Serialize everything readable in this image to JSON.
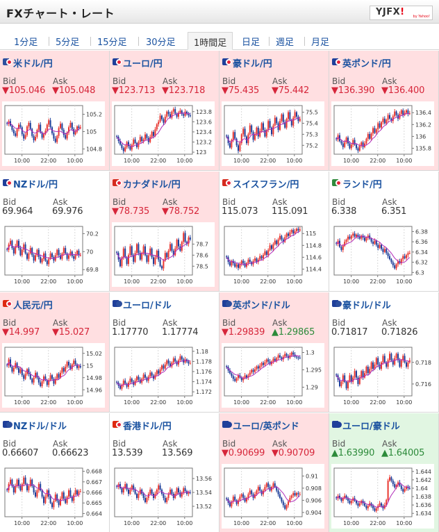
{
  "header": {
    "title": "FXチャート・レート",
    "logo": "YJFX!",
    "logo_sub": "by Yahoo!"
  },
  "tabs": [
    "1分足",
    "5分足",
    "15分足",
    "30分足",
    "1時間足",
    "日足",
    "週足",
    "月足"
  ],
  "active_tab": 4,
  "labels": {
    "bid": "Bid",
    "ask": "Ask",
    "x_ticks": [
      "10:00",
      "22:00",
      "10:00"
    ]
  },
  "colors": {
    "down_bg": "#ffdfe1",
    "up_bg": "#e1f6e2",
    "down_text": "#d6263a",
    "up_text": "#2c8a3a",
    "candle_up": "#e8352f",
    "candle_down": "#1f3f9a",
    "ma": "#b02bb9"
  },
  "pairs": [
    {
      "name": "米ドル/円",
      "flag": "us-jp",
      "state": "down",
      "bid": "▼105.046",
      "ask": "▼105.048",
      "bid_dir": "down",
      "ask_dir": "down",
      "yticks": [
        "105.2",
        "105",
        "104.8"
      ],
      "ymin": 104.74,
      "ymax": 105.3,
      "closes": [
        105.09,
        105.12,
        105.07,
        105.02,
        104.98,
        104.95,
        105.03,
        105.08,
        105.05,
        104.97,
        104.92,
        104.96,
        105.06,
        105.1,
        105.03,
        104.95,
        104.9,
        104.94,
        105.02,
        105.08,
        104.99,
        104.93,
        104.97,
        105.01,
        105.08,
        105.13,
        105.05,
        104.98,
        104.92,
        104.88,
        104.95,
        105.04,
        105.09,
        105.02,
        104.96,
        104.92,
        104.99,
        105.05,
        105.1,
        105.03,
        104.97,
        105.0,
        105.06,
        105.04,
        105.05
      ]
    },
    {
      "name": "ユーロ/円",
      "flag": "eu-jp",
      "state": "down",
      "bid": "▼123.713",
      "ask": "▼123.718",
      "bid_dir": "down",
      "ask_dir": "down",
      "yticks": [
        "123.8",
        "123.6",
        "123.4",
        "123.2",
        "123"
      ],
      "ymin": 122.96,
      "ymax": 123.92,
      "closes": [
        123.3,
        123.22,
        123.15,
        123.08,
        123.02,
        123.1,
        123.2,
        123.12,
        123.05,
        123.15,
        123.25,
        123.18,
        123.1,
        123.2,
        123.3,
        123.22,
        123.25,
        123.35,
        123.28,
        123.2,
        123.3,
        123.4,
        123.32,
        123.45,
        123.55,
        123.6,
        123.72,
        123.65,
        123.58,
        123.7,
        123.8,
        123.75,
        123.68,
        123.8,
        123.85,
        123.76,
        123.7,
        123.78,
        123.82,
        123.75,
        123.72,
        123.8,
        123.76,
        123.73,
        123.71
      ]
    },
    {
      "name": "豪ドル/円",
      "flag": "au-jp",
      "state": "down",
      "bid": "▼75.435",
      "ask": "▼75.442",
      "bid_dir": "down",
      "ask_dir": "down",
      "yticks": [
        "75.5",
        "75.4",
        "75.3",
        "75.2"
      ],
      "ymin": 75.12,
      "ymax": 75.56,
      "closes": [
        75.28,
        75.22,
        75.18,
        75.25,
        75.32,
        75.26,
        75.2,
        75.15,
        75.22,
        75.3,
        75.35,
        75.28,
        75.22,
        75.3,
        75.38,
        75.32,
        75.25,
        75.3,
        75.36,
        75.28,
        75.33,
        75.4,
        75.34,
        75.28,
        75.34,
        75.42,
        75.36,
        75.3,
        75.38,
        75.45,
        75.4,
        75.34,
        75.42,
        75.48,
        75.41,
        75.36,
        75.44,
        75.5,
        75.43,
        75.38,
        75.45,
        75.5,
        75.46,
        75.42,
        75.44
      ]
    },
    {
      "name": "英ポンド/円",
      "flag": "gb-jp",
      "state": "down",
      "bid": "▼136.390",
      "ask": "▼136.400",
      "bid_dir": "down",
      "ask_dir": "down",
      "yticks": [
        "136.4",
        "136.2",
        "136",
        "135.8"
      ],
      "ymin": 135.7,
      "ymax": 136.52,
      "closes": [
        135.95,
        136.02,
        135.92,
        135.88,
        135.82,
        135.9,
        135.98,
        135.88,
        135.8,
        135.86,
        135.94,
        135.86,
        135.8,
        135.76,
        135.84,
        135.9,
        135.82,
        135.88,
        135.96,
        136.04,
        135.96,
        136.05,
        136.14,
        136.06,
        136.12,
        136.22,
        136.15,
        136.24,
        136.3,
        136.22,
        136.28,
        136.36,
        136.3,
        136.26,
        136.34,
        136.42,
        136.36,
        136.3,
        136.38,
        136.44,
        136.36,
        136.4,
        136.44,
        136.38,
        136.39
      ]
    },
    {
      "name": "NZドル/円",
      "flag": "nz-jp",
      "state": "flat",
      "bid": "69.964",
      "ask": "69.976",
      "bid_dir": "flat",
      "ask_dir": "flat",
      "yticks": [
        "70.2",
        "70",
        "69.8"
      ],
      "ymin": 69.74,
      "ymax": 70.28,
      "closes": [
        70.02,
        70.08,
        70.12,
        70.04,
        69.98,
        70.06,
        70.12,
        70.04,
        69.96,
        70.02,
        70.08,
        69.98,
        69.92,
        69.98,
        70.04,
        69.96,
        69.9,
        69.96,
        70.02,
        69.94,
        69.88,
        69.92,
        69.98,
        69.9,
        69.86,
        69.92,
        69.98,
        69.94,
        69.9,
        69.96,
        70.02,
        69.96,
        69.92,
        69.98,
        70.04,
        69.98,
        69.92,
        69.96,
        70.0,
        69.95,
        69.92,
        69.97,
        70.01,
        69.96,
        69.96
      ]
    },
    {
      "name": "カナダドル/円",
      "flag": "ca-jp",
      "state": "down",
      "bid": "▼78.735",
      "ask": "▼78.752",
      "bid_dir": "down",
      "ask_dir": "down",
      "yticks": [
        "78.7",
        "78.6",
        "78.5"
      ],
      "ymin": 78.42,
      "ymax": 78.86,
      "closes": [
        78.62,
        78.56,
        78.5,
        78.58,
        78.66,
        78.58,
        78.52,
        78.6,
        78.68,
        78.6,
        78.54,
        78.62,
        78.7,
        78.62,
        78.56,
        78.62,
        78.68,
        78.6,
        78.54,
        78.6,
        78.66,
        78.58,
        78.52,
        78.58,
        78.64,
        78.56,
        78.5,
        78.48,
        78.55,
        78.62,
        78.58,
        78.64,
        78.7,
        78.64,
        78.6,
        78.66,
        78.74,
        78.68,
        78.64,
        78.72,
        78.8,
        78.72,
        78.7,
        78.76,
        78.74
      ]
    },
    {
      "name": "スイスフラン/円",
      "flag": "ch-jp",
      "state": "flat",
      "bid": "115.073",
      "ask": "115.091",
      "bid_dir": "flat",
      "ask_dir": "flat",
      "yticks": [
        "115",
        "114.8",
        "114.6",
        "114.4"
      ],
      "ymin": 114.3,
      "ymax": 115.12,
      "closes": [
        114.6,
        114.52,
        114.46,
        114.54,
        114.5,
        114.44,
        114.48,
        114.42,
        114.48,
        114.54,
        114.5,
        114.44,
        114.5,
        114.56,
        114.52,
        114.48,
        114.54,
        114.58,
        114.52,
        114.56,
        114.62,
        114.58,
        114.64,
        114.7,
        114.64,
        114.72,
        114.8,
        114.74,
        114.82,
        114.88,
        114.82,
        114.9,
        114.96,
        114.9,
        114.86,
        114.94,
        115.0,
        114.96,
        115.02,
        115.06,
        115.0,
        115.04,
        115.08,
        115.05,
        115.07
      ]
    },
    {
      "name": "ランド/円",
      "flag": "za-jp",
      "state": "flat",
      "bid": "6.338",
      "ask": "6.351",
      "bid_dir": "flat",
      "ask_dir": "flat",
      "yticks": [
        "6.38",
        "6.36",
        "6.34",
        "6.32",
        "6.3"
      ],
      "ymin": 6.295,
      "ymax": 6.39,
      "closes": [
        6.356,
        6.362,
        6.35,
        6.344,
        6.352,
        6.36,
        6.364,
        6.37,
        6.366,
        6.372,
        6.376,
        6.37,
        6.374,
        6.37,
        6.366,
        6.372,
        6.368,
        6.362,
        6.368,
        6.372,
        6.366,
        6.36,
        6.356,
        6.362,
        6.354,
        6.348,
        6.354,
        6.346,
        6.34,
        6.346,
        6.338,
        6.332,
        6.326,
        6.32,
        6.314,
        6.308,
        6.316,
        6.322,
        6.318,
        6.326,
        6.332,
        6.328,
        6.334,
        6.338,
        6.338
      ]
    },
    {
      "name": "人民元/円",
      "flag": "cn-jp",
      "state": "down",
      "bid": "▼14.997",
      "ask": "▼15.027",
      "bid_dir": "down",
      "ask_dir": "down",
      "yticks": [
        "15.02",
        "15",
        "14.98",
        "14.96"
      ],
      "ymin": 14.95,
      "ymax": 15.03,
      "closes": [
        15.0,
        15.01,
        14.998,
        14.99,
        14.996,
        15.004,
        14.996,
        14.988,
        14.994,
        14.984,
        14.978,
        14.986,
        14.994,
        14.986,
        14.978,
        14.972,
        14.98,
        14.988,
        14.98,
        14.972,
        14.966,
        14.974,
        14.982,
        14.976,
        14.968,
        14.976,
        14.984,
        14.978,
        14.97,
        14.978,
        14.986,
        14.98,
        14.988,
        14.996,
        14.99,
        14.998,
        15.006,
        15.0,
        14.994,
        15.002,
        15.008,
        15.002,
        14.996,
        14.999,
        14.997
      ]
    },
    {
      "name": "ユーロ/ドル",
      "flag": "eu-us",
      "state": "flat",
      "bid": "1.17770",
      "ask": "1.17774",
      "bid_dir": "flat",
      "ask_dir": "flat",
      "yticks": [
        "1.18",
        "1.178",
        "1.176",
        "1.174",
        "1.172"
      ],
      "ymin": 1.1712,
      "ymax": 1.1808,
      "closes": [
        1.1738,
        1.1732,
        1.1726,
        1.1734,
        1.1742,
        1.1736,
        1.173,
        1.1738,
        1.1746,
        1.174,
        1.1734,
        1.1742,
        1.175,
        1.1744,
        1.1738,
        1.1746,
        1.1754,
        1.1748,
        1.1742,
        1.175,
        1.1758,
        1.1752,
        1.1746,
        1.1754,
        1.1762,
        1.1756,
        1.1764,
        1.1772,
        1.1766,
        1.1774,
        1.1782,
        1.1776,
        1.177,
        1.1778,
        1.1786,
        1.178,
        1.1774,
        1.1782,
        1.179,
        1.1784,
        1.1778,
        1.1784,
        1.178,
        1.1776,
        1.1777
      ]
    },
    {
      "name": "英ポンド/ドル",
      "flag": "gb-us",
      "state": "down",
      "bid": "▼1.29839",
      "ask": "▲1.29865",
      "bid_dir": "down",
      "ask_dir": "up",
      "yticks": [
        "1.3",
        "1.295",
        "1.29"
      ],
      "ymin": 1.2875,
      "ymax": 1.3015,
      "closes": [
        1.2958,
        1.2948,
        1.294,
        1.2932,
        1.2924,
        1.2918,
        1.2926,
        1.2934,
        1.2928,
        1.292,
        1.2926,
        1.2934,
        1.2928,
        1.2934,
        1.2942,
        1.295,
        1.2944,
        1.2952,
        1.296,
        1.2954,
        1.2962,
        1.297,
        1.2964,
        1.2972,
        1.298,
        1.2974,
        1.2966,
        1.2974,
        1.2982,
        1.2976,
        1.2984,
        1.2992,
        1.2986,
        1.298,
        1.2988,
        1.2996,
        1.299,
        1.2984,
        1.2992,
        1.3,
        1.2994,
        1.2988,
        1.2986,
        1.2985,
        1.2984
      ]
    },
    {
      "name": "豪ドル/ドル",
      "flag": "au-us",
      "state": "flat",
      "bid": "0.71817",
      "ask": "0.71826",
      "bid_dir": "flat",
      "ask_dir": "flat",
      "yticks": [
        "0.718",
        "0.716"
      ],
      "ymin": 0.7149,
      "ymax": 0.7194,
      "closes": [
        0.7168,
        0.7164,
        0.7158,
        0.7162,
        0.7168,
        0.7162,
        0.7156,
        0.7162,
        0.7168,
        0.7162,
        0.7166,
        0.7172,
        0.7166,
        0.716,
        0.7166,
        0.7172,
        0.7166,
        0.717,
        0.7176,
        0.717,
        0.7174,
        0.718,
        0.7174,
        0.7178,
        0.7184,
        0.7178,
        0.7174,
        0.718,
        0.7186,
        0.718,
        0.7176,
        0.7182,
        0.7188,
        0.7182,
        0.7178,
        0.7184,
        0.7188,
        0.7182,
        0.7176,
        0.7182,
        0.7186,
        0.718,
        0.7176,
        0.718,
        0.7182
      ]
    },
    {
      "name": "NZドル/ドル",
      "flag": "nz-us",
      "state": "flat",
      "bid": "0.66607",
      "ask": "0.66623",
      "bid_dir": "flat",
      "ask_dir": "flat",
      "yticks": [
        "0.668",
        "0.667",
        "0.666",
        "0.665",
        "0.664"
      ],
      "ymin": 0.6637,
      "ymax": 0.6683,
      "closes": [
        0.6662,
        0.6668,
        0.6672,
        0.6666,
        0.666,
        0.6666,
        0.6672,
        0.6666,
        0.6662,
        0.6668,
        0.6674,
        0.6668,
        0.6662,
        0.6666,
        0.6672,
        0.6666,
        0.666,
        0.6656,
        0.6662,
        0.6668,
        0.6662,
        0.6656,
        0.665,
        0.6656,
        0.6662,
        0.6656,
        0.665,
        0.6646,
        0.6652,
        0.6658,
        0.6652,
        0.6648,
        0.6654,
        0.666,
        0.6654,
        0.665,
        0.6656,
        0.6662,
        0.6656,
        0.6652,
        0.6658,
        0.6662,
        0.6658,
        0.6661,
        0.6661
      ]
    },
    {
      "name": "香港ドル/円",
      "flag": "hk-jp",
      "state": "flat",
      "bid": "13.539",
      "ask": "13.569",
      "bid_dir": "flat",
      "ask_dir": "flat",
      "yticks": [
        "13.56",
        "13.54",
        "13.52"
      ],
      "ymin": 13.505,
      "ymax": 13.575,
      "closes": [
        13.548,
        13.552,
        13.546,
        13.54,
        13.546,
        13.552,
        13.544,
        13.538,
        13.544,
        13.55,
        13.544,
        13.538,
        13.532,
        13.538,
        13.544,
        13.538,
        13.532,
        13.526,
        13.532,
        13.538,
        13.544,
        13.538,
        13.532,
        13.538,
        13.544,
        13.55,
        13.544,
        13.538,
        13.532,
        13.526,
        13.532,
        13.538,
        13.544,
        13.538,
        13.532,
        13.538,
        13.546,
        13.54,
        13.534,
        13.54,
        13.546,
        13.542,
        13.538,
        13.54,
        13.539
      ]
    },
    {
      "name": "ユーロ/英ポンド",
      "flag": "eu-gb",
      "state": "down",
      "bid": "▼0.90699",
      "ask": "▼0.90709",
      "bid_dir": "down",
      "ask_dir": "down",
      "yticks": [
        "0.91",
        "0.908",
        "0.906",
        "0.904"
      ],
      "ymin": 0.9033,
      "ymax": 0.9113,
      "closes": [
        0.9062,
        0.9056,
        0.905,
        0.9058,
        0.9066,
        0.906,
        0.9054,
        0.906,
        0.9066,
        0.907,
        0.9064,
        0.9058,
        0.9064,
        0.907,
        0.9076,
        0.907,
        0.9064,
        0.907,
        0.9076,
        0.9082,
        0.9076,
        0.907,
        0.9076,
        0.9082,
        0.9088,
        0.9082,
        0.9076,
        0.9082,
        0.9088,
        0.9082,
        0.9076,
        0.907,
        0.9064,
        0.9058,
        0.9052,
        0.9046,
        0.9052,
        0.9058,
        0.9064,
        0.9068,
        0.9072,
        0.9068,
        0.9072,
        0.907,
        0.907
      ]
    },
    {
      "name": "ユーロ/豪ドル",
      "flag": "eu-au",
      "state": "up",
      "bid": "▲1.63990",
      "ask": "▲1.64005",
      "bid_dir": "up",
      "ask_dir": "up",
      "yticks": [
        "1.644",
        "1.642",
        "1.64",
        "1.638",
        "1.636",
        "1.634"
      ],
      "ymin": 1.6332,
      "ymax": 1.6448,
      "closes": [
        1.6376,
        1.6382,
        1.6376,
        1.637,
        1.6376,
        1.6382,
        1.6376,
        1.637,
        1.6364,
        1.637,
        1.6376,
        1.637,
        1.6364,
        1.6358,
        1.6364,
        1.637,
        1.6364,
        1.6358,
        1.6352,
        1.6358,
        1.6364,
        1.6358,
        1.6352,
        1.6346,
        1.6352,
        1.6358,
        1.6364,
        1.6358,
        1.6352,
        1.636,
        1.6372,
        1.6418,
        1.6426,
        1.6418,
        1.641,
        1.6402,
        1.6408,
        1.6414,
        1.6406,
        1.6398,
        1.6392,
        1.6398,
        1.6404,
        1.64,
        1.6399
      ]
    }
  ]
}
